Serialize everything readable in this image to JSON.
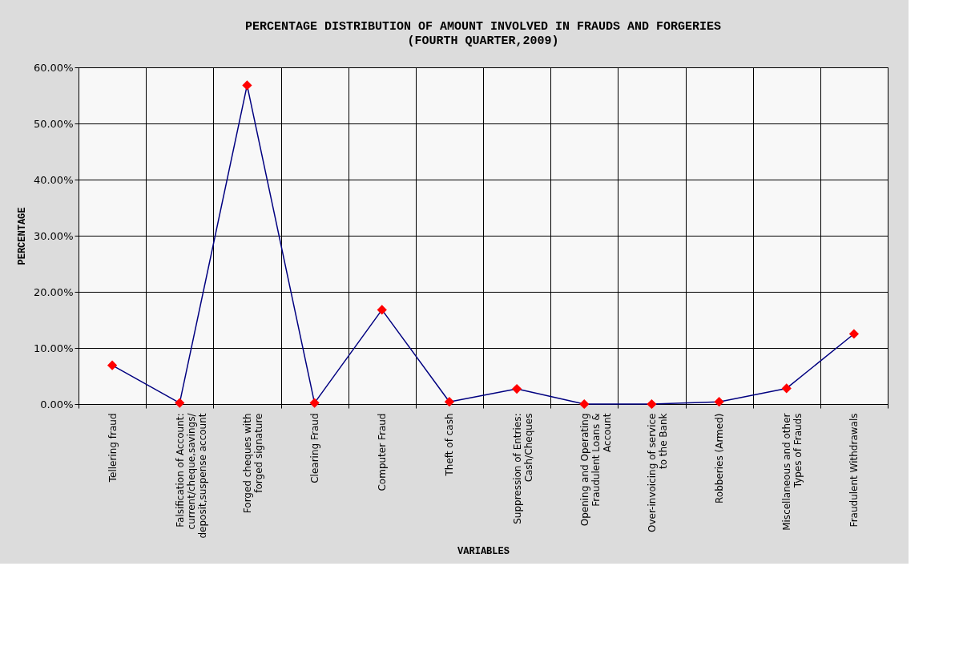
{
  "chart_data": {
    "type": "line",
    "title": "PERCENTAGE DISTRIBUTION OF AMOUNT INVOLVED IN FRAUDS AND FORGERIES",
    "subtitle": "(FOURTH QUARTER,2009)",
    "xlabel": "VARIABLES",
    "ylabel": "PERCENTAGE",
    "categories": [
      "Tellering fraud",
      "Falsification of Account: current/cheque,savings/ deposit,suspense account",
      "Forged cheques with forged signature",
      "Clearing Fraud",
      "Computer Fraud",
      "Theft of cash",
      "Suppression of Entries: Cash/Cheques",
      "Opening and Operating Fraudulent Loans & Account",
      "Over-invoicing of service to the Bank",
      "Robberies (Armed)",
      "Miscellaneous and other Types of Frauds",
      "Fraudulent Withdrawals"
    ],
    "series": [
      {
        "color": "#000080",
        "values": [
          6.9,
          0.2,
          56.8,
          0.2,
          16.8,
          0.4,
          2.7,
          0.0,
          0.0,
          0.4,
          2.8,
          12.5
        ]
      }
    ],
    "colors": [
      "#ff0000",
      "#ff0000",
      "#ff0000",
      "#ff0000",
      "#ff0000",
      "#ff0000",
      "#ff0000",
      "#ff0000",
      "#ff0000",
      "#ff0000",
      "#ff0000",
      "#ff0000"
    ],
    "ylim": [
      0,
      60
    ],
    "yticks": [
      {
        "value": 0,
        "label": "0.00%"
      },
      {
        "value": 10,
        "label": "10.00%"
      },
      {
        "value": 20,
        "label": "20.00%"
      },
      {
        "value": 30,
        "label": "30.00%"
      },
      {
        "value": 40,
        "label": "40.00%"
      },
      {
        "value": 50,
        "label": "50.00%"
      },
      {
        "value": 60,
        "label": "60.00%"
      }
    ],
    "grid": true,
    "marker": "diamond",
    "line_style": "solid"
  }
}
